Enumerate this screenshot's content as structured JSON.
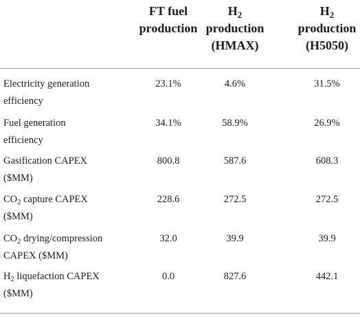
{
  "columns": [
    {
      "line1": "FT fuel",
      "line2": "production"
    },
    {
      "line1_main": "H",
      "line1_sub": "2",
      "line2": "production",
      "line3": "(HMAX)"
    },
    {
      "line1_main": "H",
      "line1_sub": "2",
      "line2": "production",
      "line3": "(H5050)"
    }
  ],
  "rows": [
    {
      "label_pre": "",
      "label_sub": "",
      "label_line1": "Electricity generation",
      "label_line2": "efficiency",
      "values": [
        "23.1%",
        "4.6%",
        "31.5%"
      ]
    },
    {
      "label_pre": "",
      "label_sub": "",
      "label_line1": "Fuel generation",
      "label_line2": "efficiency",
      "values": [
        "34.1%",
        "58.9%",
        "26.9%"
      ]
    },
    {
      "label_pre": "",
      "label_sub": "",
      "label_line1": "Gasification CAPEX",
      "label_line2": "($MM)",
      "values": [
        "800.8",
        "587.6",
        "608.3"
      ]
    },
    {
      "label_pre": "CO",
      "label_sub": "2",
      "label_line1": " capture CAPEX",
      "label_line2": "($MM)",
      "values": [
        "228.6",
        "272.5",
        "272.5"
      ]
    },
    {
      "label_pre": "CO",
      "label_sub": "2",
      "label_line1": " drying/compression",
      "label_line2": "CAPEX ($MM)",
      "values": [
        "32.0",
        "39.9",
        "39.9"
      ]
    },
    {
      "label_pre": "H",
      "label_sub": "2",
      "label_line1": " liquefaction CAPEX",
      "label_line2": "($MM)",
      "values": [
        "0.0",
        "827.6",
        "442.1"
      ]
    }
  ]
}
